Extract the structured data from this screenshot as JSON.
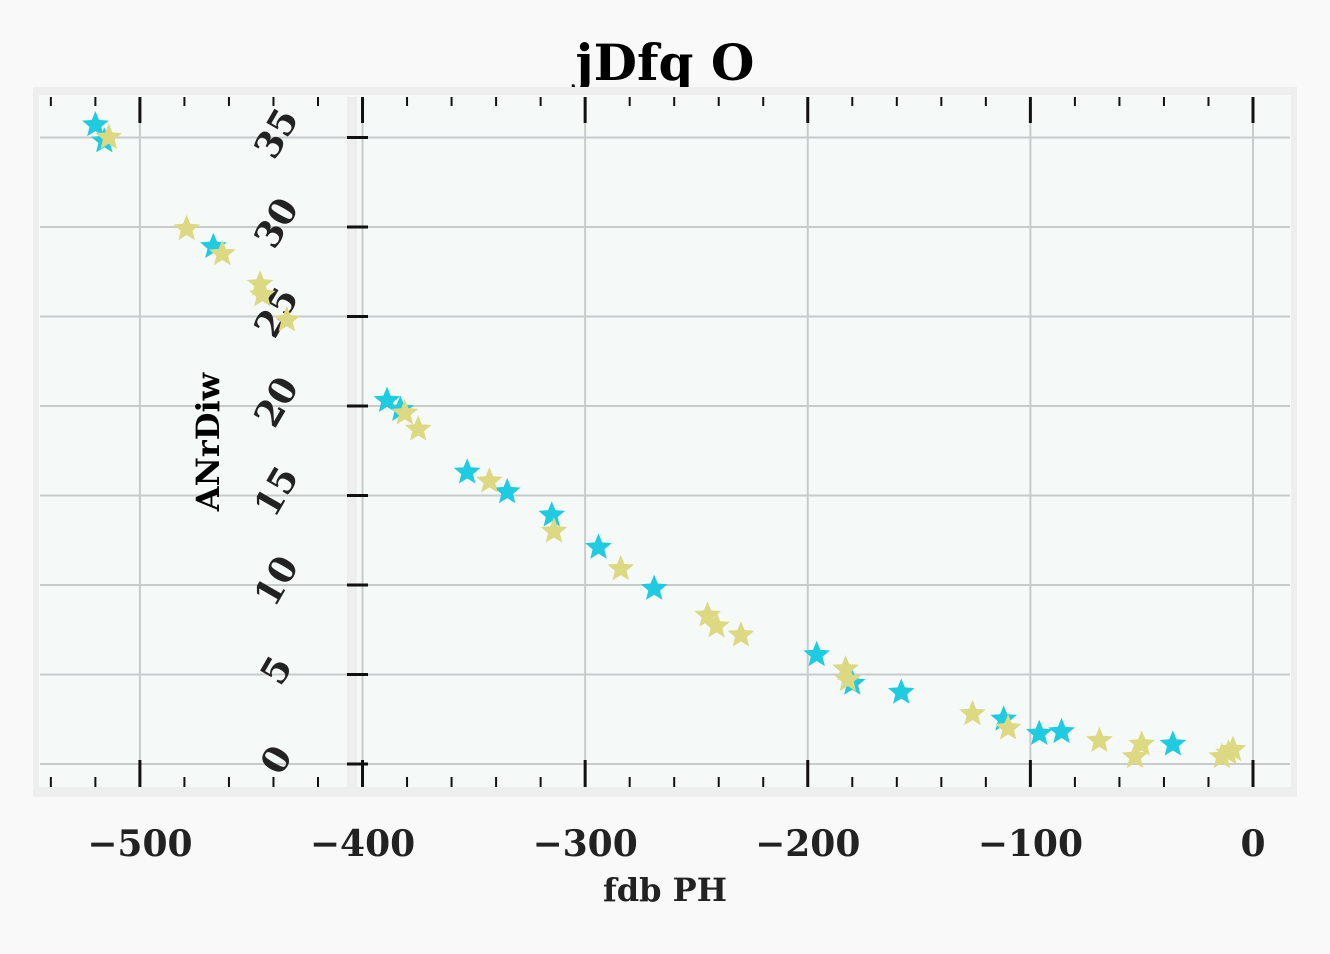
{
  "chart_data": {
    "type": "scatter",
    "title": "jDfq O",
    "xlabel": "fdb PH",
    "ylabel": "ANrDiw",
    "xlim": [
      -545,
      18
    ],
    "ylim": [
      -1.4,
      37.9
    ],
    "x_ticks": [
      -500,
      -400,
      -300,
      -200,
      -100,
      0
    ],
    "x_tick_labels": [
      "−500",
      "−400",
      "−300",
      "−200",
      "−100",
      "0"
    ],
    "y_ticks": [
      0,
      5,
      10,
      15,
      20,
      25,
      30,
      35
    ],
    "y_tick_labels": [
      "0",
      "5",
      "10",
      "15",
      "20",
      "25",
      "30",
      "35"
    ],
    "grid": true,
    "marker": "star",
    "series": [
      {
        "color": "#1fcbe0",
        "points": [
          [
            -520,
            35.7
          ],
          [
            -516,
            34.8
          ],
          [
            -467,
            28.9
          ],
          [
            -389,
            20.3
          ],
          [
            -383,
            19.8
          ],
          [
            -353,
            16.3
          ],
          [
            -335,
            15.2
          ],
          [
            -315,
            13.9
          ],
          [
            -294,
            12.1
          ],
          [
            -269,
            9.8
          ],
          [
            -196,
            6.1
          ],
          [
            -180,
            4.5
          ],
          [
            -158,
            4.0
          ],
          [
            -112,
            2.5
          ],
          [
            -96,
            1.7
          ],
          [
            -86,
            1.8
          ],
          [
            -36,
            1.1
          ]
        ]
      },
      {
        "color": "#ddd882",
        "points": [
          [
            -514,
            35.0
          ],
          [
            -479,
            29.9
          ],
          [
            -463,
            28.5
          ],
          [
            -446,
            26.8
          ],
          [
            -445,
            26.2
          ],
          [
            -434,
            24.8
          ],
          [
            -381,
            19.6
          ],
          [
            -375,
            18.7
          ],
          [
            -343,
            15.8
          ],
          [
            -314,
            13.0
          ],
          [
            -284,
            10.9
          ],
          [
            -245,
            8.3
          ],
          [
            -241,
            7.7
          ],
          [
            -230,
            7.2
          ],
          [
            -183,
            5.3
          ],
          [
            -182,
            4.7
          ],
          [
            -126,
            2.8
          ],
          [
            -110,
            2.0
          ],
          [
            -69,
            1.3
          ],
          [
            -53,
            0.4
          ],
          [
            -50,
            1.1
          ],
          [
            -14,
            0.4
          ],
          [
            -11,
            0.6
          ],
          [
            -9,
            0.8
          ]
        ]
      }
    ]
  }
}
